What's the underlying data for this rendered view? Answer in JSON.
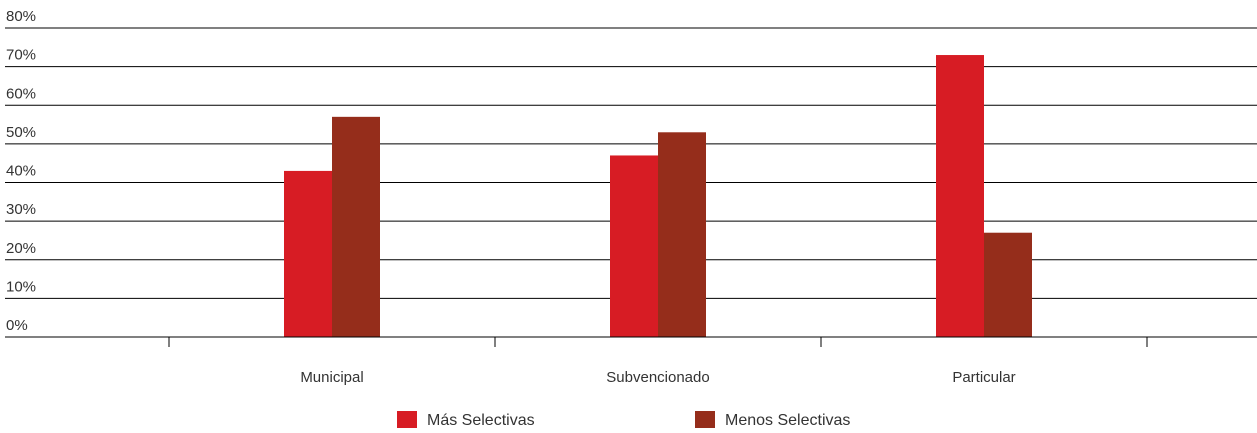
{
  "chart_data": {
    "type": "bar",
    "categories": [
      "Municipal",
      "Subvencionado",
      "Particular"
    ],
    "series": [
      {
        "name": "Más Selectivas",
        "values": [
          43,
          47,
          73
        ],
        "color": "#d71c24"
      },
      {
        "name": "Menos Selectivas",
        "values": [
          57,
          53,
          27
        ],
        "color": "#952d1b"
      }
    ],
    "y_ticks": [
      "0%",
      "10%",
      "20%",
      "30%",
      "40%",
      "50%",
      "60%",
      "70%",
      "80%"
    ],
    "ylim": [
      0,
      80
    ],
    "grid": true,
    "legend_position": "bottom"
  }
}
